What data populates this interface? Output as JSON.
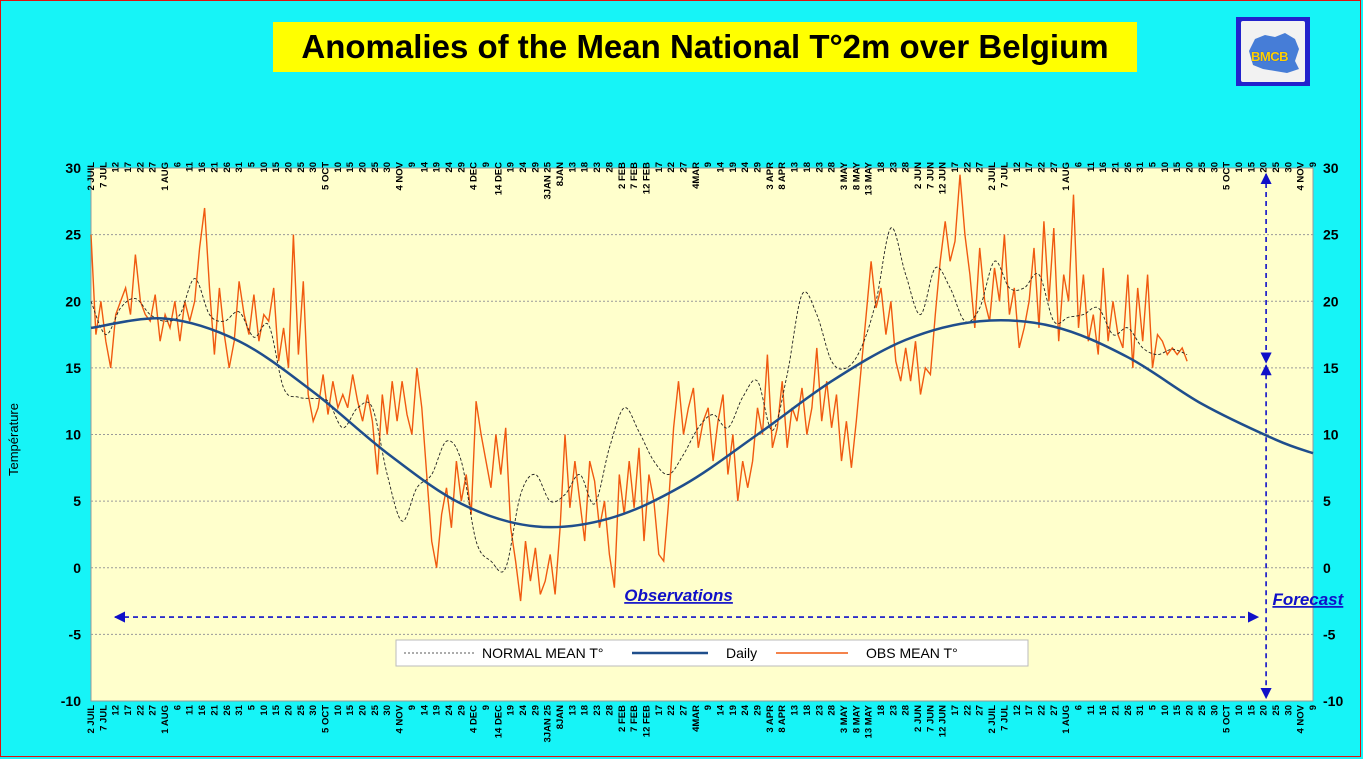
{
  "title": "Anomalies of the Mean National T°2m over Belgium",
  "logo": {
    "icon": "bmcb-logo-icon",
    "text": "BMCB"
  },
  "chart_data": {
    "type": "line",
    "ylabel": "Température",
    "ylim": [
      -10,
      30
    ],
    "yticks": [
      -10,
      -5,
      0,
      5,
      10,
      15,
      20,
      25,
      30
    ],
    "grid": true,
    "legend_position": "bottom-center",
    "x_range_days": [
      0,
      495
    ],
    "date_ticks": [
      "2 JUIL",
      "7 JUL",
      "12",
      "17",
      "22",
      "27",
      "1 AUG",
      "6",
      "11",
      "16",
      "21",
      "26",
      "31",
      "5",
      "10",
      "15",
      "20",
      "25",
      "30",
      "5 OCT",
      "10",
      "15",
      "20",
      "25",
      "30",
      "4 NOV",
      "9",
      "14",
      "19",
      "24",
      "29",
      "4 DEC",
      "9",
      "14 DEC",
      "19",
      "24",
      "29",
      "3JAN 25",
      "8JAN",
      "13",
      "18",
      "23",
      "28",
      "2 FEB",
      "7 FEB",
      "12 FEB",
      "17",
      "22",
      "27",
      "4MAR",
      "9",
      "14",
      "19",
      "24",
      "29",
      "3 APR",
      "8 APR",
      "13",
      "18",
      "23",
      "28",
      "3 MAY",
      "8 MAY",
      "13 MAY",
      "18",
      "23",
      "28",
      "2 JUN",
      "7 JUN",
      "12 JUN",
      "17",
      "22",
      "27",
      "2 JUIL",
      "7 JUL",
      "12",
      "17",
      "22",
      "27",
      "1 AUG",
      "6",
      "11",
      "16",
      "21",
      "26",
      "31",
      "5",
      "10",
      "15",
      "20",
      "25",
      "30",
      "5 OCT",
      "10",
      "15",
      "20",
      "25",
      "30",
      "4 NOV",
      "9"
    ],
    "tick_step_days": 5,
    "series": [
      {
        "name": "NORMAL MEAN T°",
        "color": "#1f4e8c",
        "style": "solid-thick",
        "x": [
          0,
          30,
          60,
          90,
          120,
          150,
          180,
          210,
          240,
          270,
          300,
          330,
          360,
          390,
          420,
          450,
          480,
          495
        ],
        "values": [
          18.0,
          18.7,
          17.0,
          13.2,
          8.6,
          4.8,
          3.1,
          3.7,
          6.2,
          10.0,
          14.0,
          17.1,
          18.5,
          18.1,
          15.8,
          12.3,
          9.6,
          8.6
        ]
      },
      {
        "name": "Daily",
        "color": "#222222",
        "style": "dashed-thin",
        "x": [
          0,
          6,
          12,
          18,
          24,
          30,
          36,
          42,
          48,
          54,
          60,
          66,
          72,
          78,
          84,
          90,
          96,
          102,
          108,
          114,
          120,
          126,
          132,
          138,
          144,
          150,
          156,
          162,
          168,
          174,
          180,
          186,
          192,
          198,
          204,
          210,
          216,
          222,
          228,
          234,
          240,
          246,
          252,
          258,
          264,
          270,
          276,
          282,
          288,
          294,
          300,
          306,
          312,
          318,
          324,
          330,
          336,
          342,
          348,
          354,
          360,
          366,
          372,
          378,
          384,
          390,
          396,
          402,
          408,
          414,
          420,
          426,
          432,
          438,
          444
        ],
        "values": [
          20,
          17.5,
          19.5,
          20.2,
          19.0,
          18.5,
          19.0,
          21.7,
          19.0,
          18.5,
          19.2,
          17.3,
          18.2,
          13.5,
          12.8,
          12.7,
          12.5,
          10.5,
          12.0,
          12.0,
          7.0,
          3.5,
          6.0,
          7.0,
          9.5,
          8.0,
          2.0,
          0.5,
          0.0,
          5.5,
          7.0,
          5.0,
          5.5,
          7.0,
          4.8,
          9.0,
          12.0,
          10.2,
          8.0,
          7.0,
          8.5,
          10.5,
          11.5,
          10.5,
          12.8,
          14.0,
          10.3,
          14.5,
          20.5,
          19.0,
          15.5,
          15.0,
          16.5,
          20.0,
          25.5,
          22.0,
          19.0,
          22.5,
          21.0,
          18.5,
          19.5,
          23.0,
          21.0,
          21.0,
          22.0,
          18.5,
          18.8,
          19.0,
          19.5,
          17.5,
          18.0,
          16.5,
          16.0,
          16.4,
          16.0
        ]
      },
      {
        "name": "OBS MEAN T°",
        "color": "#f05a10",
        "style": "solid-thin",
        "x": [
          0,
          2,
          4,
          6,
          8,
          10,
          12,
          14,
          16,
          18,
          20,
          22,
          24,
          26,
          28,
          30,
          32,
          34,
          36,
          38,
          40,
          42,
          44,
          46,
          48,
          50,
          52,
          54,
          56,
          58,
          60,
          62,
          64,
          66,
          68,
          70,
          72,
          74,
          76,
          78,
          80,
          82,
          84,
          86,
          88,
          90,
          92,
          94,
          96,
          98,
          100,
          102,
          104,
          106,
          108,
          110,
          112,
          114,
          116,
          118,
          120,
          122,
          124,
          126,
          128,
          130,
          132,
          134,
          136,
          138,
          140,
          142,
          144,
          146,
          148,
          150,
          152,
          154,
          156,
          158,
          160,
          162,
          164,
          166,
          168,
          170,
          172,
          174,
          176,
          178,
          180,
          182,
          184,
          186,
          188,
          190,
          192,
          194,
          196,
          198,
          200,
          202,
          204,
          206,
          208,
          210,
          212,
          214,
          216,
          218,
          220,
          222,
          224,
          226,
          228,
          230,
          232,
          234,
          236,
          238,
          240,
          242,
          244,
          246,
          248,
          250,
          252,
          254,
          256,
          258,
          260,
          262,
          264,
          266,
          268,
          270,
          272,
          274,
          276,
          278,
          280,
          282,
          284,
          286,
          288,
          290,
          292,
          294,
          296,
          298,
          300,
          302,
          304,
          306,
          308,
          310,
          312,
          314,
          316,
          318,
          320,
          322,
          324,
          326,
          328,
          330,
          332,
          334,
          336,
          338,
          340,
          342,
          344,
          346,
          348,
          350,
          352,
          354,
          356,
          358,
          360,
          362,
          364,
          366,
          368,
          370,
          372,
          374,
          376,
          378,
          380,
          382,
          384,
          386,
          388,
          390,
          392,
          394,
          396,
          398,
          400,
          402,
          404,
          406,
          408,
          410,
          412,
          414,
          416,
          418,
          420,
          422,
          424,
          426,
          428,
          430,
          432,
          434,
          436,
          438,
          440,
          442,
          444
        ],
        "values": [
          25.0,
          17.5,
          20.0,
          17.0,
          15.0,
          19.0,
          20.0,
          21.0,
          19.0,
          23.5,
          20.0,
          19.0,
          18.5,
          20.5,
          17.0,
          19.0,
          18.0,
          20.0,
          17.0,
          20.0,
          18.5,
          20.0,
          24.0,
          27.0,
          21.0,
          16.0,
          21.0,
          17.5,
          15.0,
          17.0,
          21.5,
          19.0,
          17.5,
          20.5,
          17.0,
          19.0,
          18.5,
          21.0,
          15.5,
          18.0,
          15.0,
          25.0,
          16.0,
          21.5,
          13.0,
          11.0,
          12.0,
          14.5,
          11.5,
          14.0,
          12.0,
          13.0,
          12.0,
          14.5,
          12.5,
          11.0,
          13.0,
          11.0,
          7.0,
          13.0,
          10.0,
          14.0,
          11.0,
          14.0,
          11.5,
          10.0,
          15.0,
          12.0,
          7.0,
          2.0,
          0.0,
          4.0,
          6.0,
          3.0,
          8.0,
          5.0,
          7.0,
          4.0,
          12.5,
          10.0,
          8.0,
          6.0,
          10.0,
          7.0,
          10.5,
          3.0,
          0.5,
          -2.5,
          2.0,
          -1.0,
          1.5,
          -2.0,
          -1.0,
          1.0,
          -2.0,
          3.0,
          10.0,
          4.5,
          8.0,
          5.0,
          2.0,
          8.0,
          6.5,
          3.0,
          5.0,
          1.0,
          -1.5,
          7.0,
          4.0,
          8.0,
          4.5,
          9.0,
          2.0,
          7.0,
          5.0,
          1.0,
          0.5,
          5.0,
          10.5,
          14.0,
          10.0,
          12.0,
          13.5,
          9.0,
          11.0,
          12.0,
          8.0,
          11.0,
          13.0,
          7.0,
          10.0,
          5.0,
          8.0,
          6.0,
          8.0,
          12.0,
          10.0,
          16.0,
          9.0,
          10.5,
          14.0,
          9.0,
          12.0,
          11.0,
          13.5,
          10.0,
          12.0,
          16.5,
          11.0,
          14.0,
          10.5,
          13.0,
          8.0,
          11.0,
          7.5,
          11.0,
          15.0,
          19.0,
          23.0,
          19.5,
          21.0,
          17.5,
          20.0,
          15.5,
          14.0,
          16.5,
          14.0,
          17.0,
          13.0,
          15.0,
          14.5,
          19.0,
          23.0,
          26.0,
          23.0,
          24.5,
          29.5,
          25.0,
          22.0,
          18.0,
          24.0,
          20.0,
          18.5,
          22.5,
          20.0,
          25.0,
          19.0,
          21.0,
          16.5,
          18.0,
          20.0,
          24.0,
          18.0,
          26.0,
          20.0,
          25.5,
          17.0,
          22.0,
          20.0,
          28.0,
          18.0,
          22.0,
          17.0,
          19.0,
          16.0,
          22.5,
          17.0,
          20.0,
          17.5,
          16.5,
          22.0,
          15.0,
          21.0,
          17.0,
          22.0,
          15.0,
          17.5,
          17.0,
          16.0,
          16.5,
          16.0,
          16.5,
          15.5
        ]
      }
    ],
    "annotations": [
      {
        "text": "Observations",
        "day": 216,
        "y": -2.5
      },
      {
        "text": "Forecast",
        "day": 481,
        "y": -2.8
      }
    ],
    "forecast_marker_day": 476
  }
}
